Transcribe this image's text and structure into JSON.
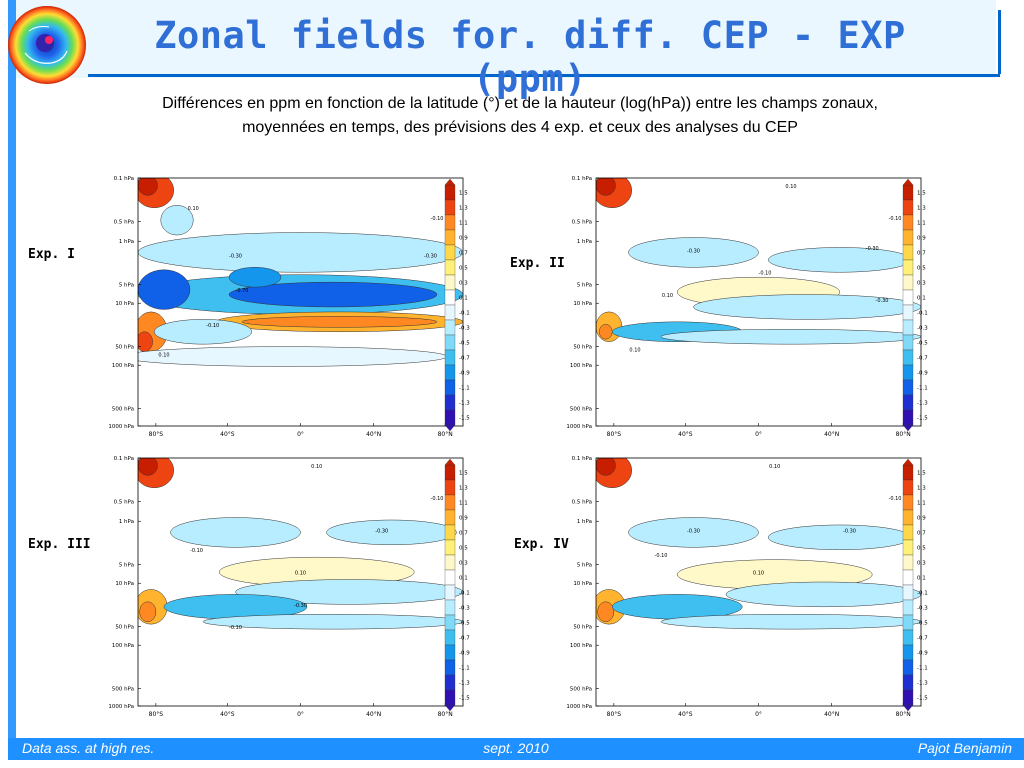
{
  "title": "Zonal fields for. diff. CEP - EXP (ppm)",
  "subtitle_line1": "Différences en ppm en fonction de la latitude (°) et de la hauteur (log(hPa)) entre les champs zonaux,",
  "subtitle_line2": "moyennées en temps, des prévisions des 4 exp. et ceux des analyses du CEP",
  "footer": {
    "left": "Data ass. at high res.",
    "center": "sept. 2010",
    "right": "Pajot Benjamin"
  },
  "colors": {
    "accent": "#1e90ff",
    "title": "#2f6fd6",
    "header_bg": "#eaf7ff"
  },
  "chart_data": [
    {
      "type": "heatmap",
      "label": "Exp. I",
      "x_ticks": [
        "80°S",
        "40°S",
        "0°",
        "40°N",
        "80°N"
      ],
      "y_ticks": [
        "0.1 hPa",
        "0.5 hPa",
        "1 hPa",
        "5 hPa",
        "10 hPa",
        "50 hPa",
        "100 hPa",
        "500 hPa",
        "1000 hPa"
      ],
      "contour_labels": [
        "0.10",
        "-0.10",
        "-0.30",
        "-0.30",
        "-0.70",
        "-0.10",
        "0.10"
      ],
      "colorbar": [
        "1.5",
        "1.3",
        "1.1",
        "0.9",
        "0.7",
        "0.5",
        "0.3",
        "0.1",
        "-0.1",
        "-0.3",
        "-0.5",
        "-0.7",
        "-0.9",
        "-1.1",
        "-1.3",
        "-1.5"
      ]
    },
    {
      "type": "heatmap",
      "label": "Exp. II",
      "x_ticks": [
        "80°S",
        "40°S",
        "0°",
        "40°N",
        "80°N"
      ],
      "y_ticks": [
        "0.1 hPa",
        "0.5 hPa",
        "1 hPa",
        "5 hPa",
        "10 hPa",
        "50 hPa",
        "100 hPa",
        "500 hPa",
        "1000 hPa"
      ],
      "contour_labels": [
        "0.10",
        "-0.10",
        "-0.30",
        "-0.30",
        "-0.10",
        "0.10",
        "-0.30",
        "0.10"
      ],
      "colorbar": [
        "1.5",
        "1.3",
        "1.1",
        "0.9",
        "0.7",
        "0.5",
        "0.3",
        "0.1",
        "-0.1",
        "-0.3",
        "-0.5",
        "-0.7",
        "-0.9",
        "-1.1",
        "-1.3",
        "-1.5"
      ]
    },
    {
      "type": "heatmap",
      "label": "Exp. III",
      "x_ticks": [
        "80°S",
        "40°S",
        "0°",
        "40°N",
        "80°N"
      ],
      "y_ticks": [
        "0.1 hPa",
        "0.5 hPa",
        "1 hPa",
        "5 hPa",
        "10 hPa",
        "50 hPa",
        "100 hPa",
        "500 hPa",
        "1000 hPa"
      ],
      "contour_labels": [
        "0.10",
        "-0.10",
        "-0.30",
        "-0.10",
        "0.10",
        "-0.30",
        "-0.10"
      ],
      "colorbar": [
        "1.5",
        "1.3",
        "1.1",
        "0.9",
        "0.7",
        "0.5",
        "0.3",
        "0.1",
        "-0.1",
        "-0.3",
        "-0.5",
        "-0.7",
        "-0.9",
        "-1.1",
        "-1.3",
        "-1.5"
      ]
    },
    {
      "type": "heatmap",
      "label": "Exp. IV",
      "x_ticks": [
        "80°S",
        "40°S",
        "0°",
        "40°N",
        "80°N"
      ],
      "y_ticks": [
        "0.1 hPa",
        "0.5 hPa",
        "1 hPa",
        "5 hPa",
        "10 hPa",
        "50 hPa",
        "100 hPa",
        "500 hPa",
        "1000 hPa"
      ],
      "contour_labels": [
        "0.10",
        "-0.10",
        "-0.30",
        "-0.30",
        "-0.10",
        "0.10"
      ],
      "colorbar": [
        "1.5",
        "1.3",
        "1.1",
        "0.9",
        "0.7",
        "0.5",
        "0.3",
        "0.1",
        "-0.1",
        "-0.3",
        "-0.5",
        "-0.7",
        "-0.9",
        "-1.1",
        "-1.3",
        "-1.5"
      ]
    }
  ]
}
